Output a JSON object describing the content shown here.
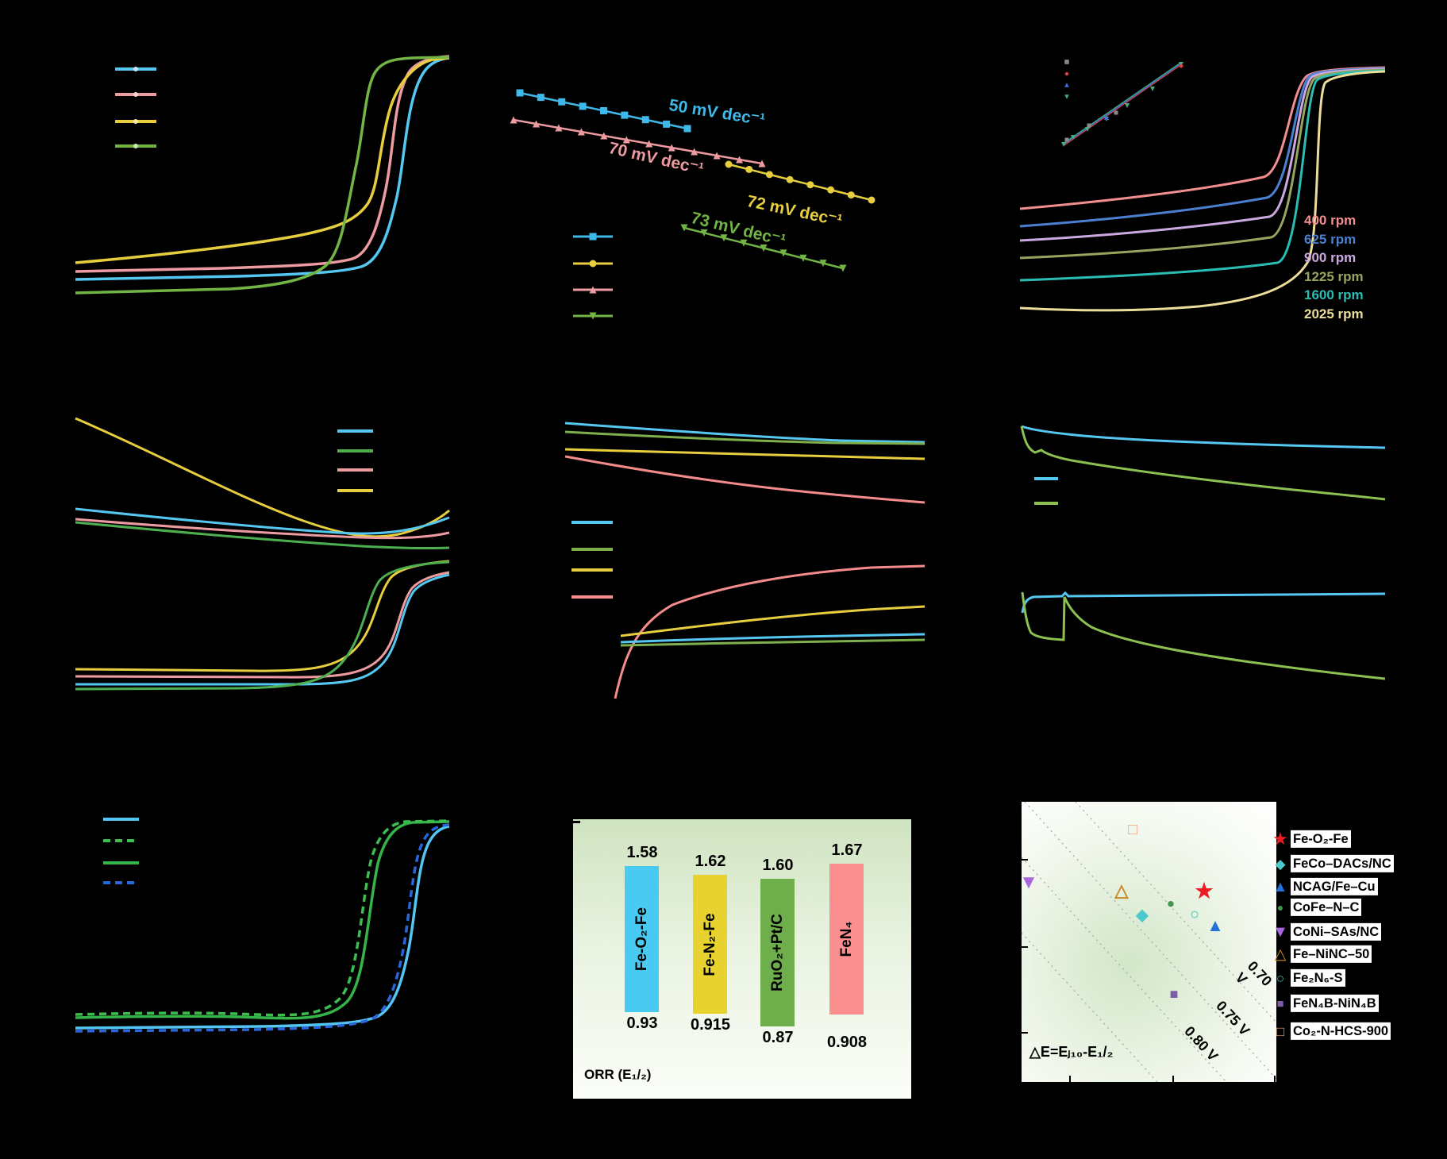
{
  "chart_data": [
    {
      "id": "a",
      "type": "line",
      "description": "ORR polarization curves (4 catalysts); axis text not visible",
      "series": [
        {
          "name": "catalyst-blue",
          "color": "#55C8F2"
        },
        {
          "name": "catalyst-pink",
          "color": "#EC9BA0"
        },
        {
          "name": "catalyst-yellow",
          "color": "#E6CE3E"
        },
        {
          "name": "catalyst-green",
          "color": "#72B544"
        }
      ]
    },
    {
      "id": "b",
      "type": "line",
      "description": "Tafel plots with fitted slopes",
      "series": [
        {
          "name": "blue-squares",
          "slope_label": "50 mV dec⁻¹",
          "slope_mV_dec": 50,
          "color": "#3EB9E9"
        },
        {
          "name": "pink-triangles",
          "slope_label": "70 mV dec⁻¹",
          "slope_mV_dec": 70,
          "color": "#EC9BA0"
        },
        {
          "name": "yellow-circles",
          "slope_label": "72 mV dec⁻¹",
          "slope_mV_dec": 72,
          "color": "#E6CE3E"
        },
        {
          "name": "green-down-triangles",
          "slope_label": "73 mV dec⁻¹",
          "slope_mV_dec": 73,
          "color": "#72B544"
        }
      ]
    },
    {
      "id": "c",
      "type": "line",
      "description": "LSV curves at rotation speeds with Koutecky-Levich inset",
      "rotation_rpm": [
        400,
        625,
        900,
        1225,
        1600,
        2025
      ]
    },
    {
      "id": "d",
      "type": "line",
      "description": "Bifunctional ORR/OER LSV curves, 4 catalysts (colors as panel a)"
    },
    {
      "id": "e",
      "type": "line",
      "description": "Electron-transfer number (top) and H2O2 yield (bottom), 4 catalysts"
    },
    {
      "id": "f",
      "type": "line",
      "description": "Chronoamperometric stability (top) and methanol-tolerance (bottom), blue vs green"
    },
    {
      "id": "g",
      "type": "line",
      "description": "LSV before (solid) and after (dashed) durability for green and blue catalysts"
    },
    {
      "id": "h",
      "type": "bar",
      "title": "ORR (E₁/₂)",
      "categories": [
        "Fe-O₂-Fe",
        "Fe-N₂-Fe",
        "RuO₂+Pt/C",
        "FeN₄"
      ],
      "top_values": [
        1.58,
        1.62,
        1.6,
        1.67
      ],
      "bottom_values": [
        0.93,
        0.915,
        0.87,
        0.908
      ]
    },
    {
      "id": "i",
      "type": "scatter",
      "description": "E1/2 vs Ej10 comparison of catalysts with iso-ΔE dotted lines",
      "annotation": "△E=Eⱼ₁₀-E₁/₂",
      "iso_lines": [
        "0.70 V",
        "0.75 V",
        "0.80 V"
      ],
      "catalysts": [
        "Fe-O₂-Fe",
        "FeCo–DACs/NC",
        "NCAG/Fe–Cu",
        "CoFe–N–C",
        "CoNi–SAs/NC",
        "Fe–NiNC–50",
        "Fe₂N₆-S",
        "FeN₄B-NiN₄B",
        "Co₂-N-HCS-900"
      ]
    }
  ],
  "panel_b": {
    "slope_labels": [
      {
        "text": "50 mV dec⁻¹",
        "color": "#3EB9E9"
      },
      {
        "text": "70 mV dec⁻¹",
        "color": "#EC9BA0"
      },
      {
        "text": "72 mV dec⁻¹",
        "color": "#E6CE3E"
      },
      {
        "text": "73 mV dec⁻¹",
        "color": "#72B544"
      }
    ]
  },
  "panel_c": {
    "rpm_labels": [
      {
        "text": "400 rpm",
        "color": "#F28E90"
      },
      {
        "text": "625 rpm",
        "color": "#4B7FD0"
      },
      {
        "text": "900 rpm",
        "color": "#CBA8E0"
      },
      {
        "text": "1225 rpm",
        "color": "#97A55F"
      },
      {
        "text": "1600 rpm",
        "color": "#2ABDB4"
      },
      {
        "text": "2025 rpm",
        "color": "#EDDD9A"
      }
    ]
  },
  "panel_h": {
    "title": "ORR (E₁/₂)",
    "bars": [
      {
        "name": "Fe-O₂-Fe",
        "top_value": "1.58",
        "bottom_value": "0.93",
        "color": "#49CAF2"
      },
      {
        "name": "Fe-N₂-Fe",
        "top_value": "1.62",
        "bottom_value": "0.915",
        "color": "#E8D22F"
      },
      {
        "name": "RuO₂+Pt/C",
        "top_value": "1.60",
        "bottom_value": "0.87",
        "color": "#6EAE4B"
      },
      {
        "name": "FeN₄",
        "top_value": "1.67",
        "bottom_value": "0.908",
        "color": "#FB8F8F"
      }
    ]
  },
  "panel_i": {
    "delta_label": "△E=Eⱼ₁₀-E₁/₂",
    "iso_labels": [
      "0.70 V",
      "0.75 V",
      "0.80 V"
    ],
    "legend": [
      {
        "label": "Fe-O₂-Fe",
        "marker": "star",
        "color": "#ED1C24"
      },
      {
        "label": "FeCo–DACs/NC",
        "marker": "diamond",
        "color": "#4BC8CC"
      },
      {
        "label": "NCAG/Fe–Cu",
        "marker": "triangle",
        "color": "#2272D8"
      },
      {
        "label": "CoFe–N–C",
        "marker": "circle",
        "color": "#43944D"
      },
      {
        "label": "CoNi–SAs/NC",
        "marker": "triangle-down",
        "color": "#AA66DD"
      },
      {
        "label": "Fe–NiNC–50",
        "marker": "triangle-open",
        "color": "#CB8A2A"
      },
      {
        "label": "Fe₂N₆-S",
        "marker": "circle-open",
        "color": "#3FC2BC"
      },
      {
        "label": "FeN₄B-NiN₄B",
        "marker": "square",
        "color": "#7B5EA7"
      },
      {
        "label": "Co₂-N-HCS-900",
        "marker": "square-open",
        "color": "#EFA477"
      }
    ]
  }
}
